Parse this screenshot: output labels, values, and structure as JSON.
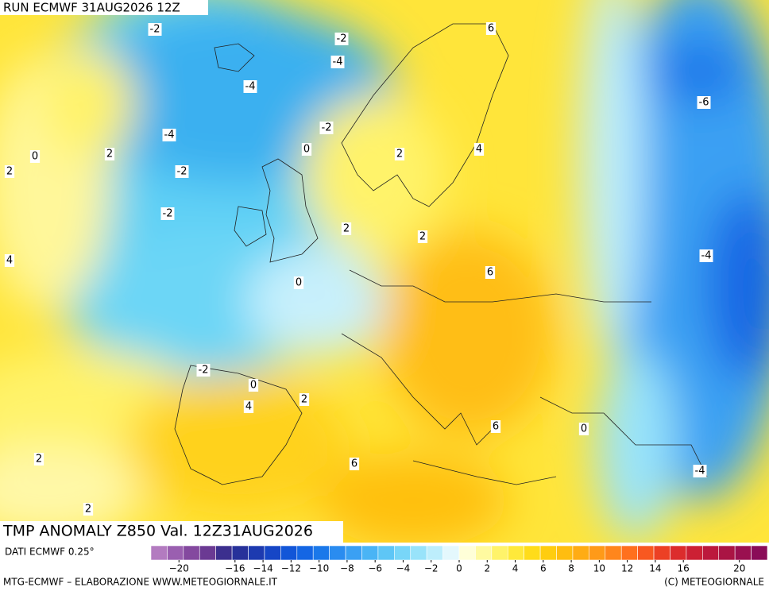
{
  "header": {
    "run": "RUN ECMWF 31AUG2026 12Z"
  },
  "map": {
    "title": "TMP ANOMALY Z850 Val. 12Z31AUG2026",
    "contour_labels": [
      -2,
      -2,
      6,
      -4,
      -4,
      -6,
      -4,
      -2,
      0,
      2,
      0,
      2,
      4,
      2,
      -2,
      -2,
      2,
      2,
      4,
      -4,
      0,
      6,
      -2,
      0,
      2,
      4,
      6,
      0,
      2,
      6,
      -4,
      2
    ]
  },
  "legend": {
    "source": "DATI ECMWF 0.25°",
    "colors": [
      "#b37bc0",
      "#9a5fb0",
      "#84499f",
      "#6b3a93",
      "#3c2f8e",
      "#27319a",
      "#1d3ab0",
      "#1646c6",
      "#1256d8",
      "#1466e4",
      "#1a78ea",
      "#2a8cf0",
      "#3aa0f3",
      "#4ab4f5",
      "#5ec6f6",
      "#78d6f8",
      "#98e3fa",
      "#bdeefc",
      "#e4f8fd",
      "#ffffd8",
      "#fffaa0",
      "#fff36a",
      "#ffe93a",
      "#ffdc1a",
      "#ffcd10",
      "#ffbd10",
      "#ffac14",
      "#ff9a18",
      "#ff861c",
      "#ff701e",
      "#f85820",
      "#ec4024",
      "#dc2c2c",
      "#cc2034",
      "#bc183c",
      "#aa1444",
      "#9a1050",
      "#8a0c58"
    ],
    "ticks": [
      {
        "value": -20,
        "label": "−20"
      },
      {
        "value": -16,
        "label": "−16"
      },
      {
        "value": -14,
        "label": "−14"
      },
      {
        "value": -12,
        "label": "−12"
      },
      {
        "value": -10,
        "label": "−10"
      },
      {
        "value": -8,
        "label": "−8"
      },
      {
        "value": -6,
        "label": "−6"
      },
      {
        "value": -4,
        "label": "−4"
      },
      {
        "value": -2,
        "label": "−2"
      },
      0,
      2,
      4,
      6,
      8,
      10,
      12,
      14,
      16,
      20
    ],
    "range": [
      -22,
      22
    ]
  },
  "footer": {
    "left": "MTG-ECMWF – ELABORAZIONE WWW.METEOGIORNALE.IT",
    "right": "(C) METEOGIORNALE"
  }
}
